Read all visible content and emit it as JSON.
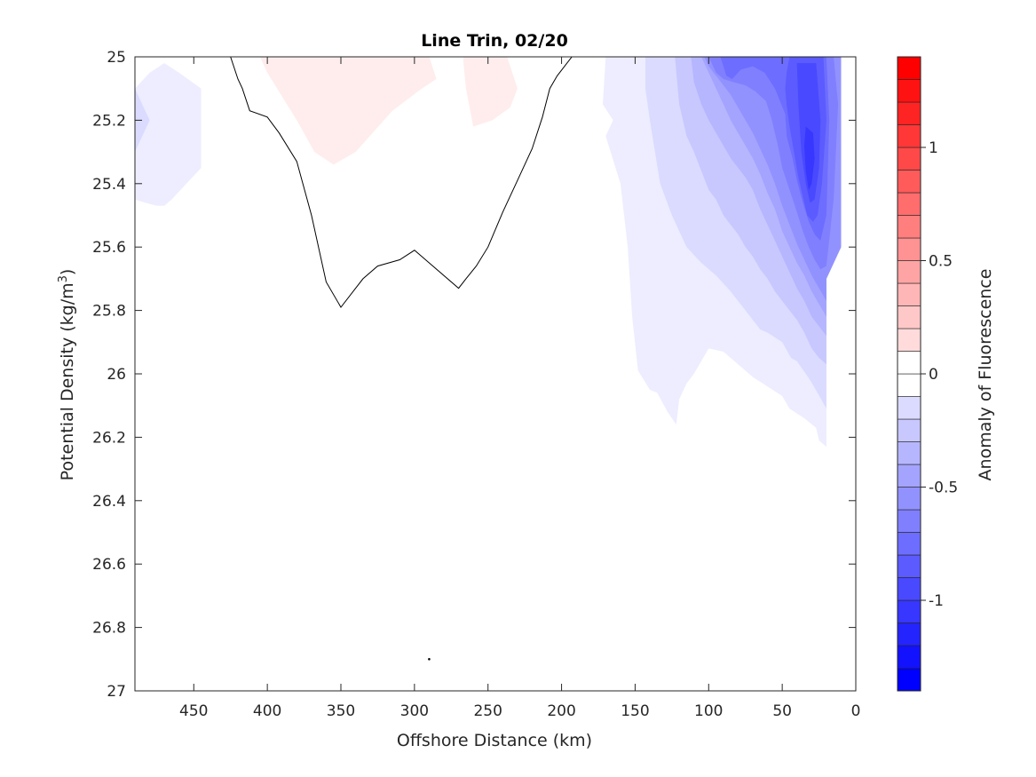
{
  "chart_data": {
    "type": "contour",
    "title": "Line Trin, 02/20",
    "xlabel": "Offshore Distance (km)",
    "ylabel_main": "Potential Density (kg/m",
    "ylabel_sup": "3",
    "ylabel_close": ")",
    "xlim": [
      490,
      0
    ],
    "x_reversed": true,
    "ylim": [
      25,
      27
    ],
    "y_reversed": true,
    "x_ticks": [
      450,
      400,
      350,
      300,
      250,
      200,
      150,
      100,
      50,
      0
    ],
    "x_tick_labels": [
      "450",
      "400",
      "350",
      "300",
      "250",
      "200",
      "150",
      "100",
      "50",
      "0"
    ],
    "y_ticks": [
      25,
      25.2,
      25.4,
      25.6,
      25.8,
      26,
      26.2,
      26.4,
      26.6,
      26.8,
      27
    ],
    "y_tick_labels": [
      "25",
      "25.2",
      "25.4",
      "25.6",
      "25.8",
      "26",
      "26.2",
      "26.4",
      "26.6",
      "26.8",
      "27"
    ],
    "colorbar": {
      "label": "Anomaly of Fluorescence",
      "range": [
        -1.4,
        1.4
      ],
      "ticks": [
        -1,
        -0.5,
        0,
        0.5,
        1
      ],
      "tick_labels": [
        "-1",
        "-0.5",
        "0",
        "0.5",
        "1"
      ],
      "step": 0.1,
      "color_min": "#0000ff",
      "color_mid": "#ffffff",
      "color_max": "#ff0000"
    },
    "data_extent_x": [
      490,
      10
    ],
    "filled_regions": [
      {
        "level": -0.1,
        "x": [
          490,
          490,
          480,
          470,
          460,
          445,
          445,
          455,
          465,
          470,
          475,
          483,
          490
        ],
        "y": [
          25.45,
          25.1,
          25.05,
          25.02,
          25.05,
          25.1,
          25.35,
          25.4,
          25.45,
          25.47,
          25.47,
          25.46,
          25.45
        ]
      },
      {
        "level": -0.2,
        "x": [
          490,
          480,
          490
        ],
        "y": [
          25.1,
          25.2,
          25.3
        ]
      },
      {
        "level": 0.1,
        "x": [
          405,
          370,
          355,
          342,
          330,
          318,
          305,
          290,
          285,
          295,
          315,
          340,
          355,
          368,
          380,
          400
        ],
        "y": [
          25.0,
          25.0,
          25.0,
          25.0,
          25.0,
          25.0,
          25.0,
          25.0,
          25.07,
          25.1,
          25.17,
          25.3,
          25.34,
          25.3,
          25.2,
          25.05
        ]
      },
      {
        "level": 0.1,
        "x": [
          267,
          237,
          230,
          235,
          247,
          260,
          265
        ],
        "y": [
          25.0,
          25.0,
          25.1,
          25.16,
          25.2,
          25.22,
          25.1
        ]
      },
      {
        "level": -0.1,
        "x": [
          170,
          10,
          10,
          20,
          20,
          25,
          27,
          35,
          45,
          50,
          60,
          70,
          90,
          100,
          110,
          115,
          120,
          122,
          128,
          135,
          140,
          148,
          152,
          155,
          160,
          170,
          165,
          172,
          170
        ],
        "y": [
          25.0,
          25.0,
          25.6,
          25.7,
          26.23,
          26.21,
          26.17,
          26.14,
          26.11,
          26.07,
          26.04,
          26.01,
          25.93,
          25.92,
          26.0,
          26.03,
          26.08,
          26.16,
          26.12,
          26.06,
          26.05,
          25.99,
          25.82,
          25.6,
          25.4,
          25.25,
          25.2,
          25.15,
          25.0
        ]
      },
      {
        "level": -0.2,
        "x": [
          143,
          10,
          10,
          20,
          20,
          26,
          31,
          40,
          44,
          50,
          60,
          65,
          75,
          85,
          95,
          105,
          115,
          120,
          125,
          133,
          140,
          143,
          143
        ],
        "y": [
          25.0,
          25.0,
          25.6,
          25.7,
          26.11,
          26.06,
          26.02,
          25.96,
          25.95,
          25.9,
          25.87,
          25.86,
          25.8,
          25.74,
          25.69,
          25.65,
          25.6,
          25.55,
          25.5,
          25.4,
          25.2,
          25.1,
          25.0
        ]
      },
      {
        "level": -0.3,
        "x": [
          123,
          10,
          10,
          20,
          20,
          25,
          30,
          35,
          40,
          45,
          50,
          55,
          60,
          65,
          70,
          75,
          80,
          85,
          90,
          95,
          100,
          105,
          110,
          115,
          120,
          123
        ],
        "y": [
          25.0,
          25.0,
          25.6,
          25.7,
          25.97,
          25.95,
          25.92,
          25.87,
          25.83,
          25.8,
          25.77,
          25.74,
          25.7,
          25.67,
          25.63,
          25.6,
          25.56,
          25.53,
          25.5,
          25.45,
          25.42,
          25.36,
          25.3,
          25.25,
          25.15,
          25.0
        ]
      },
      {
        "level": -0.4,
        "x": [
          112,
          10,
          10,
          20,
          20,
          25,
          30,
          35,
          40,
          45,
          50,
          55,
          60,
          65,
          70,
          75,
          80,
          85,
          90,
          95,
          100,
          105,
          110,
          112
        ],
        "y": [
          25.0,
          25.0,
          25.6,
          25.7,
          25.88,
          25.85,
          25.82,
          25.77,
          25.73,
          25.68,
          25.63,
          25.58,
          25.53,
          25.48,
          25.42,
          25.38,
          25.35,
          25.32,
          25.28,
          25.24,
          25.2,
          25.15,
          25.08,
          25.0
        ]
      },
      {
        "level": -0.5,
        "x": [
          105,
          10,
          10,
          20,
          20,
          25,
          30,
          35,
          40,
          45,
          50,
          55,
          60,
          65,
          70,
          75,
          80,
          85,
          90,
          95,
          100,
          105
        ],
        "y": [
          25.0,
          25.0,
          25.6,
          25.7,
          25.82,
          25.78,
          25.74,
          25.69,
          25.65,
          25.6,
          25.55,
          25.48,
          25.43,
          25.37,
          25.32,
          25.28,
          25.24,
          25.2,
          25.15,
          25.1,
          25.05,
          25.0
        ]
      },
      {
        "level": -0.6,
        "x": [
          103,
          10,
          10,
          20,
          20,
          25,
          30,
          35,
          40,
          45,
          50,
          55,
          60,
          65,
          70,
          75,
          80,
          85,
          90,
          95,
          100,
          103
        ],
        "y": [
          25.0,
          25.0,
          25.6,
          25.7,
          25.77,
          25.73,
          25.69,
          25.64,
          25.59,
          25.53,
          25.47,
          25.4,
          25.34,
          25.29,
          25.24,
          25.2,
          25.16,
          25.12,
          25.09,
          25.06,
          25.03,
          25.0
        ]
      },
      {
        "level": -0.7,
        "x": [
          100,
          15,
          12,
          15,
          20,
          24,
          28,
          32,
          36,
          40,
          45,
          50,
          53,
          57,
          61,
          68,
          75,
          83,
          90,
          95,
          100
        ],
        "y": [
          25.0,
          25.0,
          25.15,
          25.45,
          25.66,
          25.67,
          25.64,
          25.6,
          25.55,
          25.49,
          25.42,
          25.35,
          25.28,
          25.2,
          25.14,
          25.11,
          25.09,
          25.08,
          25.07,
          25.05,
          25.0
        ]
      },
      {
        "level": -0.8,
        "x": [
          92,
          20,
          18,
          20,
          24,
          28,
          32,
          36,
          40,
          43,
          47,
          48,
          55,
          62,
          70,
          78,
          84,
          88,
          92
        ],
        "y": [
          25.0,
          25.0,
          25.2,
          25.5,
          25.58,
          25.56,
          25.52,
          25.46,
          25.39,
          25.32,
          25.25,
          25.18,
          25.1,
          25.05,
          25.03,
          25.04,
          25.07,
          25.06,
          25.0
        ]
      },
      {
        "level": -0.9,
        "x": [
          45,
          22,
          20,
          23,
          26,
          29,
          33,
          36,
          39,
          42,
          45,
          47,
          48,
          47,
          45
        ],
        "y": [
          25.0,
          25.0,
          25.2,
          25.4,
          25.5,
          25.52,
          25.5,
          25.44,
          25.38,
          25.3,
          25.22,
          25.15,
          25.1,
          25.05,
          25.0
        ]
      },
      {
        "level": -1.0,
        "x": [
          40,
          27,
          24,
          25,
          28,
          31,
          34,
          37,
          39,
          40
        ],
        "y": [
          25.02,
          25.02,
          25.2,
          25.35,
          25.45,
          25.46,
          25.4,
          25.3,
          25.15,
          25.02
        ]
      },
      {
        "level": -1.1,
        "x": [
          34,
          29,
          28,
          30,
          32,
          34,
          35,
          34
        ],
        "y": [
          25.22,
          25.24,
          25.32,
          25.4,
          25.42,
          25.36,
          25.28,
          25.22
        ]
      }
    ],
    "zero_contour": {
      "x": [
        425,
        420,
        417,
        412,
        400,
        392,
        380,
        370,
        360,
        350,
        340,
        335,
        325,
        310,
        300,
        290,
        270,
        265,
        258,
        250,
        240,
        230,
        220,
        213,
        208,
        203,
        193
      ],
      "y": [
        25.0,
        25.07,
        25.1,
        25.17,
        25.19,
        25.24,
        25.33,
        25.5,
        25.71,
        25.79,
        25.73,
        25.7,
        25.66,
        25.64,
        25.61,
        25.65,
        25.73,
        25.7,
        25.66,
        25.6,
        25.49,
        25.39,
        25.29,
        25.19,
        25.1,
        25.06,
        25.0
      ]
    },
    "zero_contour_dot": {
      "x": 290,
      "y": 26.9
    },
    "grid": false
  }
}
